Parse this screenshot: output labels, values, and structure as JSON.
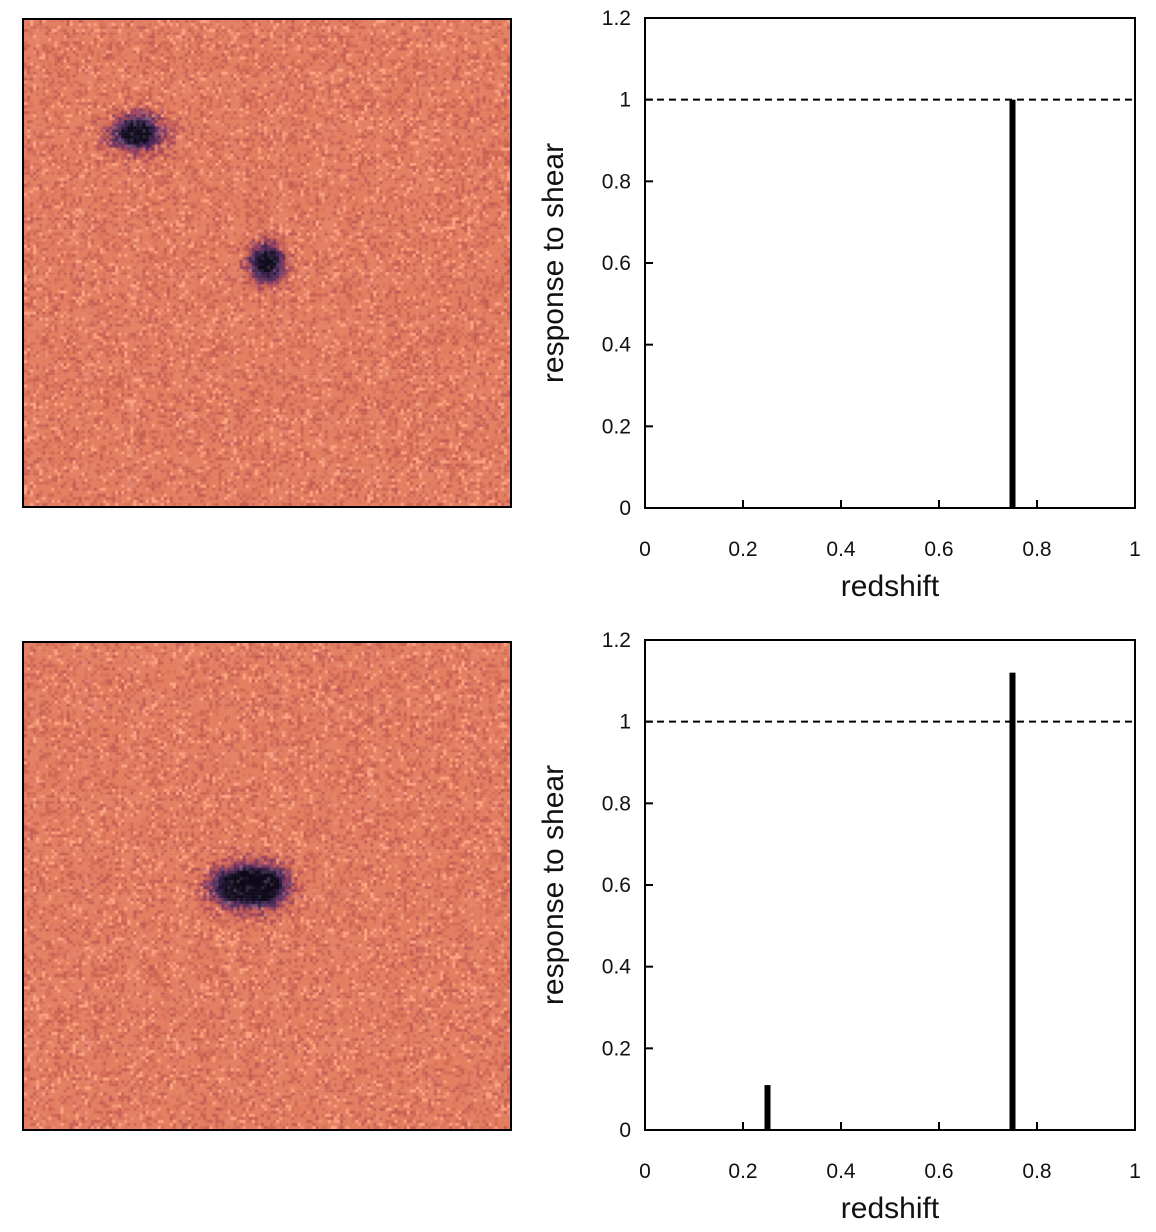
{
  "image_colors": {
    "background": "#de7a5e",
    "core": "#140d1f",
    "halo": "#4a2a5e"
  },
  "chart_data": [
    {
      "type": "bar",
      "xlabel": "redshift",
      "ylabel": "response to shear",
      "xlim": [
        0,
        1
      ],
      "ylim": [
        0,
        1.2
      ],
      "xticks": [
        "0",
        "0.2",
        "0.4",
        "0.6",
        "0.8",
        "1"
      ],
      "yticks": [
        "0",
        "0.2",
        "0.4",
        "0.6",
        "0.8",
        "1",
        "1.2"
      ],
      "reference_line": {
        "y": 1,
        "style": "dashed"
      },
      "bars": [
        {
          "x": 0.75,
          "value": 1.0
        }
      ],
      "grid": false,
      "bar_color": "#000000"
    },
    {
      "type": "bar",
      "xlabel": "redshift",
      "ylabel": "response to shear",
      "xlim": [
        0,
        1
      ],
      "ylim": [
        0,
        1.2
      ],
      "xticks": [
        "0",
        "0.2",
        "0.4",
        "0.6",
        "0.8",
        "1"
      ],
      "yticks": [
        "0",
        "0.2",
        "0.4",
        "0.6",
        "0.8",
        "1",
        "1.2"
      ],
      "reference_line": {
        "y": 1,
        "style": "dashed"
      },
      "bars": [
        {
          "x": 0.25,
          "value": 0.11
        },
        {
          "x": 0.75,
          "value": 1.12
        }
      ],
      "grid": false,
      "bar_color": "#000000"
    }
  ]
}
